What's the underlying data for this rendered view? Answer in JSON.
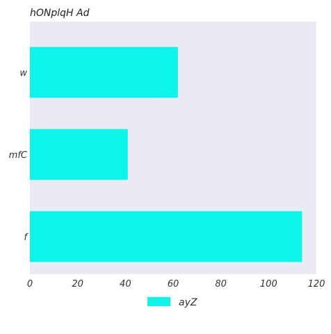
{
  "chart_data": {
    "type": "bar",
    "orientation": "horizontal",
    "title": "hONplqH  Ad",
    "xlabel": "",
    "ylabel": "",
    "categories": [
      "w",
      "mfC",
      "f"
    ],
    "series": [
      {
        "name": "ayZ",
        "values": [
          62,
          41,
          114
        ],
        "color": "#0df5e8"
      }
    ],
    "xlim": [
      0,
      120
    ],
    "xticks": [
      0,
      20,
      40,
      60,
      80,
      100,
      120
    ],
    "grid": false,
    "legend_position": "bottom-center",
    "background_color": "#eaeaf2"
  }
}
